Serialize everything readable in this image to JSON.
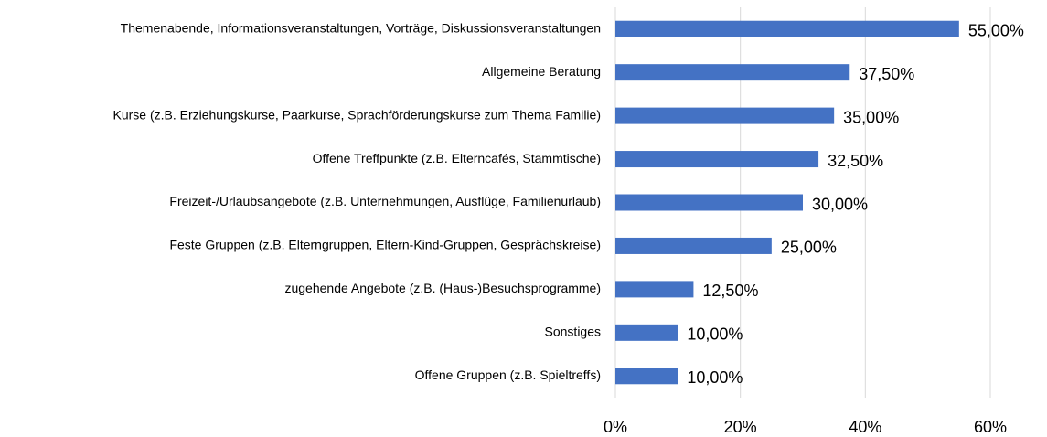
{
  "chart_data": {
    "type": "bar",
    "orientation": "horizontal",
    "categories": [
      "Themenabende, Informationsveranstaltungen, Vorträge, Diskussionsveranstaltungen",
      "Allgemeine Beratung",
      "Kurse (z.B. Erziehungskurse, Paarkurse, Sprachförderungskurse zum Thema Familie)",
      "Offene Treffpunkte (z.B. Elterncafés, Stammtische)",
      "Freizeit-/Urlaubsangebote (z.B. Unternehmungen, Ausflüge, Familienurlaub)",
      "Feste Gruppen (z.B. Elterngruppen, Eltern-Kind-Gruppen, Gesprächskreise)",
      "zugehende Angebote (z.B. (Haus-)Besuchsprogramme)",
      "Sonstiges",
      "Offene Gruppen (z.B. Spieltreffs)"
    ],
    "values": [
      55,
      37.5,
      35,
      32.5,
      30,
      25,
      12.5,
      10,
      10
    ],
    "value_labels": [
      "55,00%",
      "37,50%",
      "35,00%",
      "32,50%",
      "30,00%",
      "25,00%",
      "12,50%",
      "10,00%",
      "10,00%"
    ],
    "color": "#4472c4",
    "xlim": [
      0,
      60
    ],
    "xticks": [
      {
        "value": 0,
        "label": "0%"
      },
      {
        "value": 20,
        "label": "20%"
      },
      {
        "value": 40,
        "label": "40%"
      },
      {
        "value": 60,
        "label": "60%"
      }
    ],
    "grid": true
  }
}
